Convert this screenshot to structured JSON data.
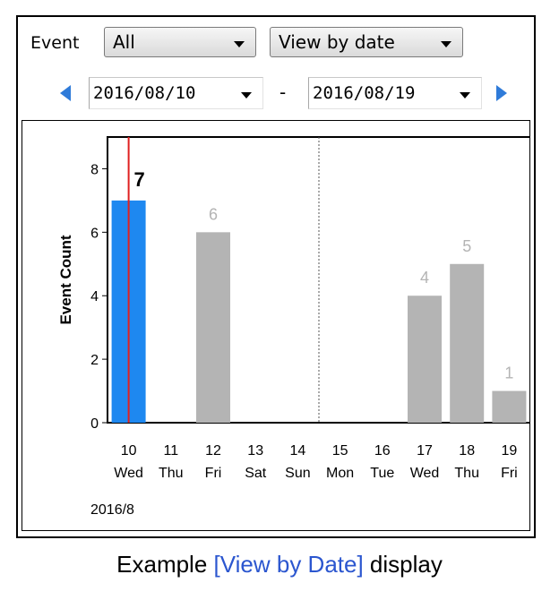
{
  "filter": {
    "event_label": "Event",
    "event_value": "All",
    "view_value": "View by date",
    "date_from": "2016/08/10",
    "date_separator": "-",
    "date_to": "2016/08/19"
  },
  "caption": {
    "prefix": "Example ",
    "highlight": "[View by Date]",
    "suffix": "  display",
    "highlight_color": "#2b56cf"
  },
  "chart_data": {
    "type": "bar",
    "ylabel": "Event Count",
    "xlabel": "",
    "ylim": [
      0,
      9
    ],
    "yticks": [
      0,
      2,
      4,
      6,
      8
    ],
    "categories": [
      "10",
      "11",
      "12",
      "13",
      "14",
      "15",
      "16",
      "17",
      "18",
      "19"
    ],
    "weekdays": [
      "Wed",
      "Thu",
      "Fri",
      "Sat",
      "Sun",
      "Mon",
      "Tue",
      "Wed",
      "Thu",
      "Fri"
    ],
    "values": [
      7,
      0,
      6,
      0,
      0,
      0,
      0,
      4,
      5,
      1
    ],
    "selected_index": 0,
    "period_label": "2016/8",
    "colors": {
      "bar": "#b4b4b4",
      "selected_bar": "#1e88f0",
      "cursor_line": "#e02020",
      "label": "#b4b4b4"
    }
  }
}
